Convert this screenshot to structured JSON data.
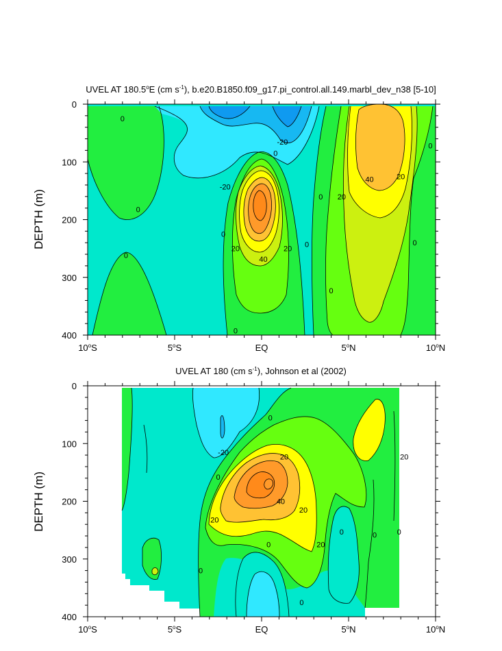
{
  "chart_data": [
    {
      "type": "contour",
      "title_prefix": "UVEL AT 180.5",
      "title_deg": "o",
      "title_mid": "E (cm s",
      "title_sup": "-1",
      "title_suffix": "), b.e20.B1850.f09_g17.pi_control.all.149.marbl_dev_n38 [5-10]",
      "ylabel": "DEPTH (m)",
      "x_ticks": [
        {
          "value": -10,
          "num": "10",
          "sup": "o",
          "hem": "S"
        },
        {
          "value": -5,
          "num": "5",
          "sup": "o",
          "hem": "S"
        },
        {
          "value": 0,
          "num": "EQ",
          "sup": "",
          "hem": ""
        },
        {
          "value": 5,
          "num": "5",
          "sup": "o",
          "hem": "N"
        },
        {
          "value": 10,
          "num": "10",
          "sup": "o",
          "hem": "N"
        }
      ],
      "y_ticks": [
        "0",
        "100",
        "200",
        "300",
        "400"
      ],
      "xlim": [
        -10,
        10
      ],
      "ylim": [
        0,
        400
      ],
      "contour_labels": [
        {
          "text": "0",
          "lat": -8.0,
          "depth": 25
        },
        {
          "text": "-20",
          "lat": 1.2,
          "depth": 65
        },
        {
          "text": "0",
          "lat": 0.8,
          "depth": 85
        },
        {
          "text": "-20",
          "lat": -2.1,
          "depth": 143
        },
        {
          "text": "0",
          "lat": -7.1,
          "depth": 182
        },
        {
          "text": "0",
          "lat": -2.2,
          "depth": 225
        },
        {
          "text": "20",
          "lat": -1.5,
          "depth": 250
        },
        {
          "text": "20",
          "lat": 1.5,
          "depth": 250
        },
        {
          "text": "0",
          "lat": 2.6,
          "depth": 243
        },
        {
          "text": "40",
          "lat": 0.1,
          "depth": 268
        },
        {
          "text": "0",
          "lat": -7.8,
          "depth": 262
        },
        {
          "text": "0",
          "lat": 3.4,
          "depth": 160
        },
        {
          "text": "20",
          "lat": 4.6,
          "depth": 160
        },
        {
          "text": "40",
          "lat": 6.2,
          "depth": 130
        },
        {
          "text": "20",
          "lat": 8.0,
          "depth": 125
        },
        {
          "text": "0",
          "lat": 9.7,
          "depth": 72
        },
        {
          "text": "0",
          "lat": 8.8,
          "depth": 240
        },
        {
          "text": "0",
          "lat": 4.0,
          "depth": 323
        },
        {
          "text": "0",
          "lat": -1.5,
          "depth": 392
        }
      ]
    },
    {
      "type": "contour",
      "title_prefix": "UVEL AT 180 (cm s",
      "title_sup": "-1",
      "title_suffix": "), Johnson et al (2002)",
      "ylabel": "DEPTH (m)",
      "x_ticks": [
        {
          "value": -10,
          "num": "10",
          "sup": "o",
          "hem": "S"
        },
        {
          "value": -5,
          "num": "5",
          "sup": "o",
          "hem": "S"
        },
        {
          "value": 0,
          "num": "EQ",
          "sup": "",
          "hem": ""
        },
        {
          "value": 5,
          "num": "5",
          "sup": "o",
          "hem": "N"
        },
        {
          "value": 10,
          "num": "10",
          "sup": "o",
          "hem": "N"
        }
      ],
      "y_ticks": [
        "0",
        "100",
        "200",
        "300",
        "400"
      ],
      "xlim": [
        -10,
        10
      ],
      "ylim": [
        0,
        400
      ],
      "contour_labels": [
        {
          "text": "-20",
          "lat": -2.2,
          "depth": 115
        },
        {
          "text": "0",
          "lat": 0.5,
          "depth": 55
        },
        {
          "text": "20",
          "lat": 1.3,
          "depth": 123
        },
        {
          "text": "20",
          "lat": 8.2,
          "depth": 123
        },
        {
          "text": "0",
          "lat": -2.5,
          "depth": 158
        },
        {
          "text": "40",
          "lat": 1.1,
          "depth": 200
        },
        {
          "text": "20",
          "lat": 2.4,
          "depth": 215
        },
        {
          "text": "20",
          "lat": -2.7,
          "depth": 232
        },
        {
          "text": "20",
          "lat": 3.4,
          "depth": 275
        },
        {
          "text": "0",
          "lat": 4.6,
          "depth": 253
        },
        {
          "text": "0",
          "lat": 6.5,
          "depth": 258
        },
        {
          "text": "0",
          "lat": 7.9,
          "depth": 253
        },
        {
          "text": "0",
          "lat": 0.4,
          "depth": 275
        },
        {
          "text": "0",
          "lat": -3.5,
          "depth": 320
        },
        {
          "text": "0",
          "lat": 2.3,
          "depth": 375
        }
      ]
    }
  ],
  "palette": {
    "c_m40": "#0f9af0",
    "c_m20": "#17b8f2",
    "c_m10": "#30e8ff",
    "c_0": "#00e8cc",
    "c_10": "#22ee40",
    "c_20": "#66ff10",
    "c_30": "#ccf010",
    "c_40": "#ffff00",
    "c_50": "#ffc233",
    "c_60": "#ff9a2a",
    "c_70": "#ff8a1a"
  }
}
